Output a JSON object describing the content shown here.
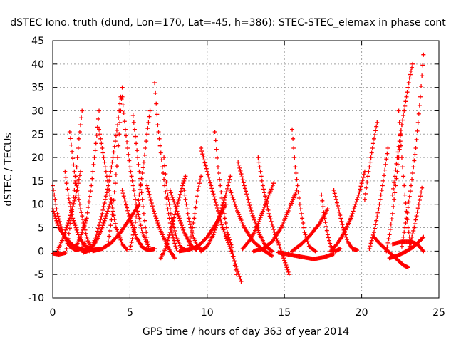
{
  "chart_data": {
    "type": "scatter",
    "title": "dSTEC Iono. truth (dund, Lon=170, Lat=-45, h=386): STEC-STEC_elemax in phase cont",
    "xlabel": "GPS time / hours of day 363 of year 2014",
    "ylabel": "dSTEC  / TECUs",
    "xlim": [
      0,
      25
    ],
    "ylim": [
      -10,
      45
    ],
    "xticks": [
      0,
      5,
      10,
      15,
      20,
      25
    ],
    "yticks": [
      -10,
      -5,
      0,
      5,
      10,
      15,
      20,
      25,
      30,
      35,
      40,
      45
    ],
    "grid": true,
    "marker": "+",
    "color": "#ff0000",
    "series": [
      {
        "x": [
          0.0,
          0.3,
          0.7,
          1.1,
          1.5,
          1.9,
          2.1
        ],
        "y": [
          14,
          8,
          3.5,
          1,
          0.2,
          0.6,
          2
        ]
      },
      {
        "x": [
          0.0,
          0.4,
          0.9,
          1.4,
          1.9,
          2.5,
          3.0
        ],
        "y": [
          9,
          5,
          2.5,
          1,
          0.3,
          0.2,
          0.5
        ]
      },
      {
        "x": [
          0.0,
          0.4,
          0.8
        ],
        "y": [
          -0.5,
          -0.7,
          -0.4
        ]
      },
      {
        "x": [
          0.3,
          0.7,
          1.1,
          1.5,
          1.8
        ],
        "y": [
          0,
          3,
          7,
          12,
          17
        ]
      },
      {
        "x": [
          0.8,
          1.0,
          1.3,
          1.7,
          2.1,
          2.5
        ],
        "y": [
          17,
          12,
          7,
          3,
          1,
          0.5
        ]
      },
      {
        "x": [
          1.1,
          1.4,
          1.8,
          2.2,
          2.5
        ],
        "y": [
          25.5,
          17,
          9,
          3,
          0.5
        ]
      },
      {
        "x": [
          0.9,
          1.2,
          1.5,
          1.7,
          1.9
        ],
        "y": [
          0.5,
          7,
          16,
          24,
          30
        ]
      },
      {
        "x": [
          1.5,
          1.8,
          2.2,
          2.5,
          2.8,
          3.0
        ],
        "y": [
          1,
          3,
          7,
          14,
          23,
          30
        ]
      },
      {
        "x": [
          2.0,
          2.4,
          2.8,
          3.2,
          3.5,
          3.8
        ],
        "y": [
          -0.3,
          0.2,
          2,
          5,
          8,
          11
        ]
      },
      {
        "x": [
          3.0,
          3.3,
          3.7,
          4.1,
          4.5,
          4.8
        ],
        "y": [
          26,
          20,
          12,
          5,
          1.5,
          0.3
        ]
      },
      {
        "x": [
          2.4,
          2.8,
          3.2,
          3.6,
          3.9,
          4.2,
          4.4
        ],
        "y": [
          0,
          3,
          8,
          14,
          20,
          27,
          33
        ]
      },
      {
        "x": [
          3.6,
          3.9,
          4.2,
          4.4,
          4.5
        ],
        "y": [
          2,
          9,
          20,
          30,
          35
        ]
      },
      {
        "x": [
          4.5,
          4.7,
          5.0,
          5.4,
          5.8,
          6.2
        ],
        "y": [
          33,
          26,
          18,
          10,
          4,
          1
        ]
      },
      {
        "x": [
          2.6,
          3.2,
          3.8,
          4.4,
          5.0,
          5.6
        ],
        "y": [
          0,
          0.5,
          1.8,
          4,
          7,
          10
        ]
      },
      {
        "x": [
          4.5,
          4.9,
          5.4,
          5.8,
          6.2,
          6.6
        ],
        "y": [
          13,
          8,
          3,
          0.8,
          0.2,
          0.5
        ]
      },
      {
        "x": [
          5.2,
          5.5,
          5.8,
          6.0,
          6.2
        ],
        "y": [
          29,
          20,
          11,
          5,
          1
        ]
      },
      {
        "x": [
          5.0,
          5.3,
          5.6,
          5.9,
          6.1,
          6.3
        ],
        "y": [
          0.3,
          5,
          12,
          19,
          25,
          30
        ]
      },
      {
        "x": [
          6.6,
          6.8,
          7.1,
          7.4,
          7.7,
          8.0
        ],
        "y": [
          36,
          27,
          18,
          10,
          4,
          0.5
        ]
      },
      {
        "x": [
          6.1,
          6.5,
          6.9,
          7.3,
          7.6,
          7.9
        ],
        "y": [
          14,
          9,
          5,
          2,
          0,
          -1.5
        ]
      },
      {
        "x": [
          7.2,
          7.4,
          7.7,
          8.0,
          8.3,
          8.6
        ],
        "y": [
          20,
          13,
          7,
          3,
          0.8,
          0.2
        ]
      },
      {
        "x": [
          7.0,
          7.3,
          7.6,
          8.0,
          8.4,
          8.6
        ],
        "y": [
          -1.5,
          0.5,
          4,
          9,
          14,
          16
        ]
      },
      {
        "x": [
          7.6,
          8.0,
          8.5,
          9.0,
          9.3
        ],
        "y": [
          13,
          9,
          4,
          1,
          0.3
        ]
      },
      {
        "x": [
          8.5,
          8.8,
          9.1,
          9.4,
          9.7
        ],
        "y": [
          13,
          7,
          3,
          0.8,
          0.2
        ]
      },
      {
        "x": [
          8.8,
          9.0,
          9.2,
          9.4,
          9.6
        ],
        "y": [
          0.3,
          4,
          8,
          13,
          16
        ]
      },
      {
        "x": [
          9.6,
          10.0,
          10.5,
          11.0,
          11.5,
          12.2
        ],
        "y": [
          22,
          17,
          11,
          5,
          0.5,
          -6.5
        ]
      },
      {
        "x": [
          8.2,
          8.8,
          9.4,
          10.0,
          10.6,
          11.2
        ],
        "y": [
          0,
          0.3,
          1,
          3,
          6,
          10
        ]
      },
      {
        "x": [
          10.5,
          10.7,
          11.0,
          11.3,
          11.6,
          11.9
        ],
        "y": [
          25.5,
          18,
          10,
          4,
          0.8,
          -5
        ]
      },
      {
        "x": [
          9.6,
          10.0,
          10.4,
          10.8,
          11.2,
          11.5
        ],
        "y": [
          0,
          1,
          3.5,
          7.5,
          12,
          16
        ]
      },
      {
        "x": [
          11.5,
          11.9,
          12.4,
          13.0,
          13.6,
          14.2
        ],
        "y": [
          13,
          9,
          5,
          2,
          0.3,
          -1
        ]
      },
      {
        "x": [
          12.0,
          12.4,
          12.9,
          13.4,
          13.8,
          14.2
        ],
        "y": [
          19,
          14,
          8,
          3.5,
          1,
          0
        ]
      },
      {
        "x": [
          12.3,
          12.8,
          13.2,
          13.6,
          14.0,
          14.3
        ],
        "y": [
          0.5,
          2.5,
          5,
          8.5,
          12,
          14.5
        ]
      },
      {
        "x": [
          13.3,
          13.6,
          14.0,
          14.4,
          14.8,
          15.3
        ],
        "y": [
          20,
          14,
          8,
          3.5,
          0,
          -5
        ]
      },
      {
        "x": [
          13.0,
          13.6,
          14.2,
          14.8,
          15.3,
          15.8
        ],
        "y": [
          0,
          0.5,
          2,
          5,
          9,
          13
        ]
      },
      {
        "x": [
          15.5,
          15.7,
          16.0,
          16.3,
          16.6,
          17.0
        ],
        "y": [
          26,
          18,
          10,
          4,
          1,
          0
        ]
      },
      {
        "x": [
          14.6,
          15.4,
          16.2,
          16.9,
          17.6,
          18.2
        ],
        "y": [
          -0.3,
          -0.8,
          -1.3,
          -1.7,
          -1.3,
          -0.6
        ]
      },
      {
        "x": [
          15.5,
          16.1,
          16.7,
          17.3,
          17.8
        ],
        "y": [
          0,
          1.5,
          3.5,
          6,
          9
        ]
      },
      {
        "x": [
          17.4,
          17.6,
          17.8,
          18.0,
          18.3,
          18.6
        ],
        "y": [
          12,
          7,
          3.5,
          1,
          0,
          0.5
        ]
      },
      {
        "x": [
          18.2,
          18.5,
          18.8,
          19.1,
          19.4,
          19.7
        ],
        "y": [
          13,
          9,
          5,
          2,
          0.5,
          0.2
        ]
      },
      {
        "x": [
          18.0,
          18.4,
          18.8,
          19.3,
          19.8,
          20.2
        ],
        "y": [
          0,
          1.5,
          3.5,
          7,
          12,
          17
        ]
      },
      {
        "x": [
          20.2,
          20.4,
          20.6,
          20.8,
          21.0
        ],
        "y": [
          11,
          16,
          20,
          24,
          27.5
        ]
      },
      {
        "x": [
          20.8,
          21.2,
          21.7,
          22.2,
          22.7,
          23.0
        ],
        "y": [
          3,
          1.5,
          0,
          -1.5,
          -3,
          -3.5
        ]
      },
      {
        "x": [
          20.5,
          20.8,
          21.1,
          21.4,
          21.7
        ],
        "y": [
          0.5,
          4,
          9,
          15,
          22
        ]
      },
      {
        "x": [
          21.6,
          21.8,
          22.0,
          22.2,
          22.4,
          22.6
        ],
        "y": [
          0,
          3.5,
          8,
          14,
          20,
          27
        ]
      },
      {
        "x": [
          22.4,
          22.6,
          22.8,
          23.0,
          23.2
        ],
        "y": [
          30,
          20,
          12,
          5,
          1
        ]
      },
      {
        "x": [
          22.0,
          22.3,
          22.6,
          22.9,
          23.1,
          23.3
        ],
        "y": [
          12,
          20,
          27,
          33,
          37,
          40
        ]
      },
      {
        "x": [
          22.6,
          22.9,
          23.2,
          23.5,
          23.8,
          24.0
        ],
        "y": [
          1,
          7,
          14,
          22,
          33,
          42
        ]
      },
      {
        "x": [
          23.1,
          23.4,
          23.7,
          23.9
        ],
        "y": [
          1,
          5,
          10,
          13.5
        ]
      },
      {
        "x": [
          22.0,
          22.6,
          23.2,
          23.6,
          24.0
        ],
        "y": [
          1.5,
          2,
          2,
          1.5,
          0
        ]
      },
      {
        "x": [
          21.8,
          22.3,
          22.8,
          23.3,
          23.7,
          24.0
        ],
        "y": [
          -1.5,
          -1,
          -0.2,
          0.8,
          2,
          3
        ]
      }
    ]
  }
}
